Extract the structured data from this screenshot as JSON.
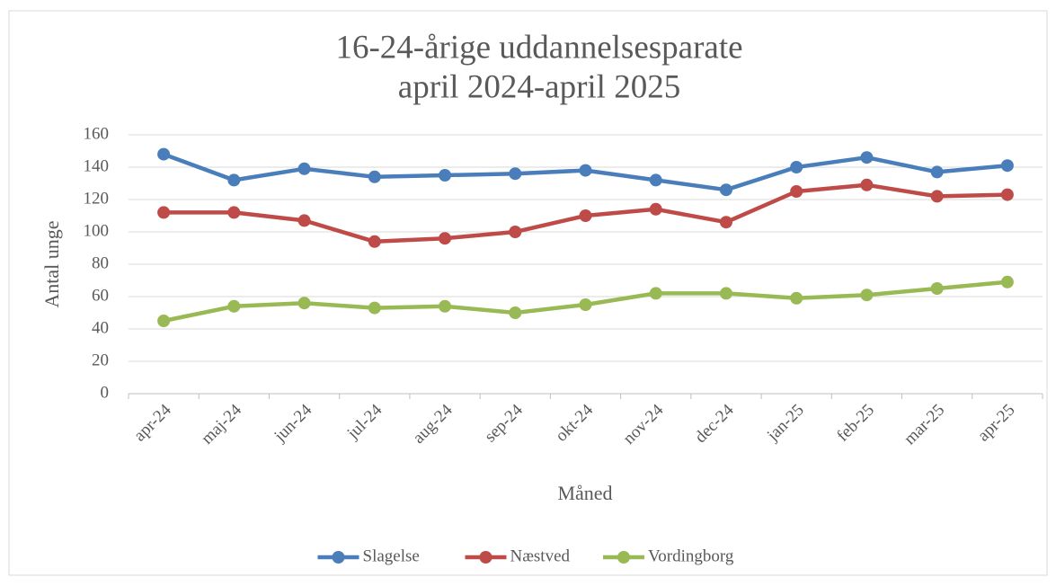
{
  "chart_data": {
    "type": "line",
    "title": "16-24-årige uddannelsesparate",
    "subtitle": "april 2024-april 2025",
    "x_label": "Måned",
    "y_label": "Antal unge",
    "categories": [
      "apr-24",
      "maj-24",
      "jun-24",
      "jul-24",
      "aug-24",
      "sep-24",
      "okt-24",
      "nov-24",
      "dec-24",
      "jan-25",
      "feb-25",
      "mar-25",
      "apr-25"
    ],
    "series": [
      {
        "name": "Slagelse",
        "color": "#4a7ebb",
        "values": [
          148,
          132,
          139,
          134,
          135,
          136,
          138,
          132,
          126,
          140,
          146,
          137,
          141
        ]
      },
      {
        "name": "Næstved",
        "color": "#be4b48",
        "values": [
          112,
          112,
          107,
          94,
          96,
          100,
          110,
          114,
          106,
          125,
          129,
          122,
          123
        ]
      },
      {
        "name": "Vordingborg",
        "color": "#98b954",
        "values": [
          45,
          54,
          56,
          53,
          54,
          50,
          55,
          62,
          62,
          59,
          61,
          65,
          69
        ]
      }
    ],
    "ylim": [
      0,
      160
    ],
    "yticks": [
      0,
      20,
      40,
      60,
      80,
      100,
      120,
      140,
      160
    ],
    "grid": true,
    "legend": "bottom"
  }
}
